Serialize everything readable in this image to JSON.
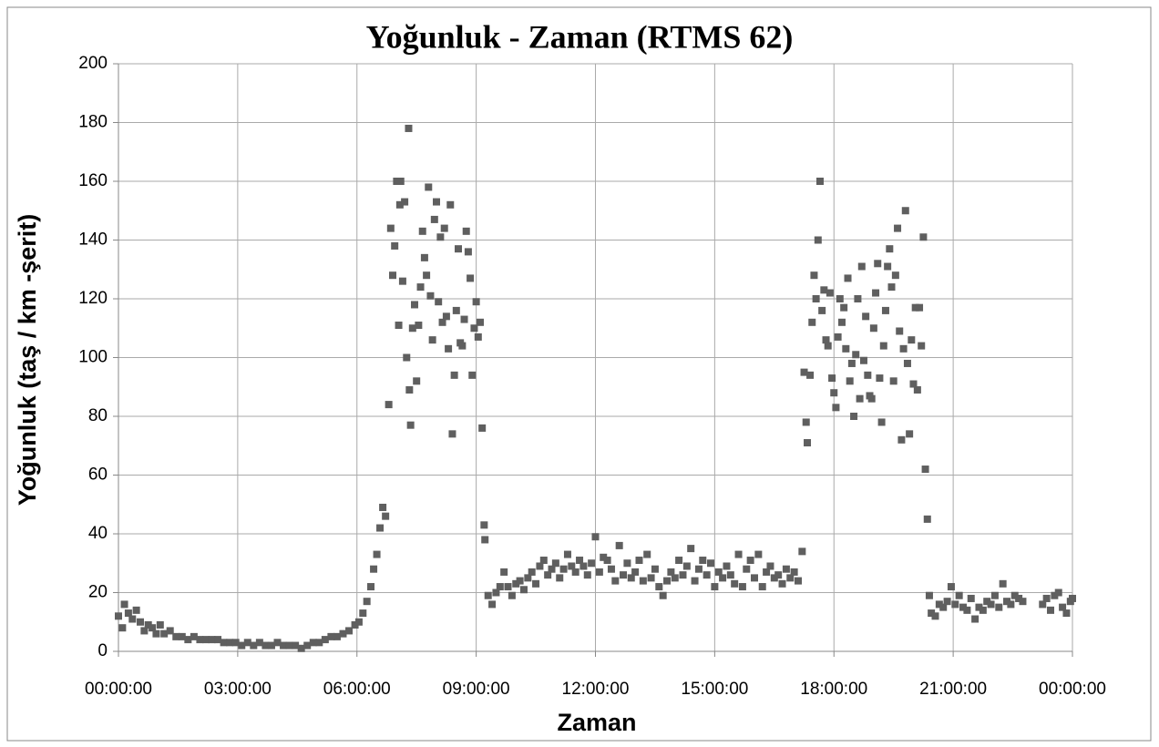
{
  "chart_data": {
    "type": "scatter",
    "title": "Yoğunluk - Zaman (RTMS 62)",
    "x_label": "Zaman",
    "y_label": "Yoğunluk (taş / km -şerit)",
    "color": "#5f5f5f",
    "grid": true,
    "xlim": [
      0,
      24
    ],
    "ylim": [
      0,
      200
    ],
    "xticks": [
      {
        "value": 0,
        "label": "00:00:00"
      },
      {
        "value": 3,
        "label": "03:00:00"
      },
      {
        "value": 6,
        "label": "06:00:00"
      },
      {
        "value": 9,
        "label": "09:00:00"
      },
      {
        "value": 12,
        "label": "12:00:00"
      },
      {
        "value": 15,
        "label": "15:00:00"
      },
      {
        "value": 18,
        "label": "18:00:00"
      },
      {
        "value": 21,
        "label": "21:00:00"
      },
      {
        "value": 24,
        "label": "00:00:00"
      }
    ],
    "yticks": [
      0,
      20,
      40,
      60,
      80,
      100,
      120,
      140,
      160,
      180,
      200
    ],
    "x": [
      0.0,
      0.1,
      0.15,
      0.25,
      0.35,
      0.45,
      0.55,
      0.65,
      0.75,
      0.85,
      0.95,
      1.05,
      1.15,
      1.3,
      1.45,
      1.6,
      1.75,
      1.9,
      2.05,
      2.2,
      2.35,
      2.5,
      2.65,
      2.8,
      2.95,
      3.1,
      3.25,
      3.4,
      3.55,
      3.7,
      3.85,
      4.0,
      4.15,
      4.3,
      4.45,
      4.6,
      4.75,
      4.9,
      5.05,
      5.2,
      5.35,
      5.5,
      5.65,
      5.8,
      5.95,
      6.05,
      6.15,
      6.25,
      6.35,
      6.42,
      6.5,
      6.58,
      6.65,
      6.72,
      6.8,
      6.85,
      6.9,
      6.95,
      7.0,
      7.05,
      7.08,
      7.1,
      7.15,
      7.2,
      7.25,
      7.3,
      7.32,
      7.35,
      7.4,
      7.45,
      7.5,
      7.55,
      7.6,
      7.65,
      7.7,
      7.75,
      7.8,
      7.85,
      7.9,
      7.95,
      8.0,
      8.05,
      8.1,
      8.15,
      8.2,
      8.25,
      8.3,
      8.35,
      8.4,
      8.45,
      8.5,
      8.55,
      8.6,
      8.65,
      8.7,
      8.75,
      8.8,
      8.85,
      8.9,
      8.95,
      9.0,
      9.05,
      9.1,
      9.15,
      9.2,
      9.22,
      9.3,
      9.4,
      9.5,
      9.6,
      9.7,
      9.8,
      9.9,
      10.0,
      10.1,
      10.2,
      10.3,
      10.4,
      10.5,
      10.6,
      10.7,
      10.8,
      10.9,
      11.0,
      11.1,
      11.2,
      11.3,
      11.4,
      11.5,
      11.6,
      11.7,
      11.8,
      11.9,
      12.0,
      12.1,
      12.2,
      12.3,
      12.4,
      12.5,
      12.6,
      12.7,
      12.8,
      12.9,
      13.0,
      13.1,
      13.2,
      13.3,
      13.4,
      13.5,
      13.6,
      13.7,
      13.8,
      13.9,
      14.0,
      14.1,
      14.2,
      14.3,
      14.4,
      14.5,
      14.6,
      14.7,
      14.8,
      14.9,
      15.0,
      15.1,
      15.2,
      15.3,
      15.4,
      15.5,
      15.6,
      15.7,
      15.8,
      15.9,
      16.0,
      16.1,
      16.2,
      16.3,
      16.4,
      16.5,
      16.6,
      16.7,
      16.8,
      16.9,
      17.0,
      17.1,
      17.2,
      17.25,
      17.3,
      17.33,
      17.4,
      17.45,
      17.5,
      17.55,
      17.6,
      17.65,
      17.7,
      17.75,
      17.8,
      17.85,
      17.9,
      17.95,
      18.0,
      18.05,
      18.1,
      18.15,
      18.2,
      18.25,
      18.3,
      18.35,
      18.4,
      18.45,
      18.5,
      18.55,
      18.6,
      18.65,
      18.7,
      18.75,
      18.8,
      18.85,
      18.9,
      18.95,
      19.0,
      19.05,
      19.1,
      19.15,
      19.2,
      19.25,
      19.3,
      19.35,
      19.4,
      19.45,
      19.5,
      19.55,
      19.6,
      19.65,
      19.7,
      19.75,
      19.8,
      19.85,
      19.9,
      19.95,
      20.0,
      20.05,
      20.1,
      20.15,
      20.2,
      20.25,
      20.3,
      20.35,
      20.4,
      20.45,
      20.55,
      20.65,
      20.75,
      20.85,
      20.95,
      21.05,
      21.15,
      21.25,
      21.35,
      21.45,
      21.55,
      21.65,
      21.75,
      21.85,
      21.95,
      22.05,
      22.15,
      22.25,
      22.35,
      22.45,
      22.55,
      22.65,
      22.75,
      23.25,
      23.35,
      23.45,
      23.55,
      23.65,
      23.75,
      23.85,
      23.95,
      24.0
    ],
    "values": [
      12,
      8,
      16,
      13,
      11,
      14,
      10,
      7,
      9,
      8,
      6,
      9,
      6,
      7,
      5,
      5,
      4,
      5,
      4,
      4,
      4,
      4,
      3,
      3,
      3,
      2,
      3,
      2,
      3,
      2,
      2,
      3,
      2,
      2,
      2,
      1,
      2,
      3,
      3,
      4,
      5,
      5,
      6,
      7,
      9,
      10,
      13,
      17,
      22,
      28,
      33,
      42,
      49,
      46,
      84,
      144,
      128,
      138,
      160,
      111,
      152,
      160,
      126,
      153,
      100,
      178,
      89,
      77,
      110,
      118,
      92,
      111,
      124,
      143,
      134,
      128,
      158,
      121,
      106,
      147,
      153,
      119,
      141,
      112,
      144,
      114,
      103,
      152,
      74,
      94,
      116,
      137,
      105,
      104,
      113,
      143,
      136,
      127,
      94,
      110,
      119,
      107,
      112,
      76,
      43,
      38,
      19,
      16,
      20,
      22,
      27,
      22,
      19,
      23,
      24,
      21,
      25,
      27,
      23,
      29,
      31,
      26,
      28,
      30,
      25,
      28,
      33,
      29,
      27,
      31,
      29,
      26,
      30,
      39,
      27,
      32,
      31,
      28,
      24,
      36,
      26,
      30,
      25,
      27,
      31,
      24,
      33,
      25,
      28,
      22,
      19,
      24,
      27,
      25,
      31,
      26,
      29,
      35,
      24,
      28,
      31,
      26,
      30,
      22,
      27,
      25,
      29,
      26,
      23,
      33,
      22,
      28,
      31,
      25,
      33,
      22,
      27,
      29,
      25,
      26,
      23,
      28,
      25,
      27,
      24,
      34,
      95,
      78,
      71,
      94,
      112,
      128,
      120,
      140,
      160,
      116,
      123,
      106,
      104,
      122,
      93,
      88,
      83,
      107,
      120,
      112,
      117,
      103,
      127,
      92,
      98,
      80,
      101,
      120,
      86,
      131,
      99,
      114,
      94,
      87,
      86,
      110,
      122,
      132,
      93,
      78,
      104,
      116,
      131,
      137,
      124,
      92,
      128,
      144,
      109,
      72,
      103,
      150,
      98,
      74,
      106,
      91,
      117,
      89,
      117,
      104,
      141,
      62,
      45,
      19,
      13,
      12,
      16,
      15,
      17,
      22,
      16,
      19,
      15,
      14,
      18,
      11,
      15,
      14,
      17,
      16,
      19,
      15,
      23,
      17,
      16,
      19,
      18,
      17,
      16,
      18,
      14,
      19,
      20,
      15,
      13,
      17,
      18
    ]
  }
}
